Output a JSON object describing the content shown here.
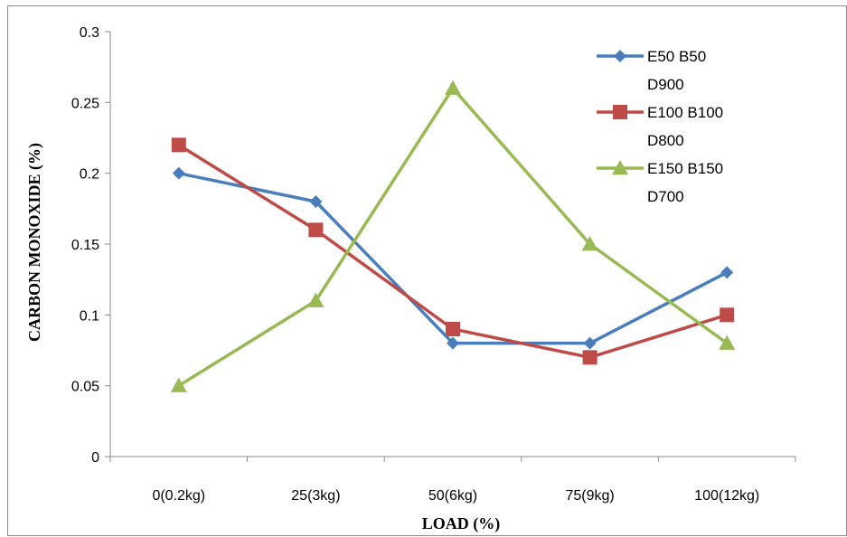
{
  "chart_data": {
    "type": "line",
    "categories": [
      "0(0.2kg)",
      "25(3kg)",
      "50(6kg)",
      "75(9kg)",
      "100(12kg)"
    ],
    "series": [
      {
        "name": [
          "E50 B50",
          "D900"
        ],
        "color": "#4a7ebb",
        "marker": "diamond",
        "values": [
          0.2,
          0.18,
          0.08,
          0.08,
          0.13
        ]
      },
      {
        "name": [
          "E100 B100",
          "D800"
        ],
        "color": "#be4b48",
        "marker": "square",
        "values": [
          0.22,
          0.16,
          0.09,
          0.07,
          0.1
        ]
      },
      {
        "name": [
          "E150 B150",
          "D700"
        ],
        "color": "#98b954",
        "marker": "triangle",
        "values": [
          0.05,
          0.11,
          0.26,
          0.15,
          0.08
        ]
      }
    ],
    "xlabel": "LOAD (%)",
    "ylabel": "CARBON  MONOXIDE (%)",
    "ylim": [
      0,
      0.3
    ],
    "yticks": [
      "0",
      "0.05",
      "0.1",
      "0.15",
      "0.2",
      "0.25",
      "0.3"
    ],
    "grid": false,
    "legend_position": "top-right"
  }
}
